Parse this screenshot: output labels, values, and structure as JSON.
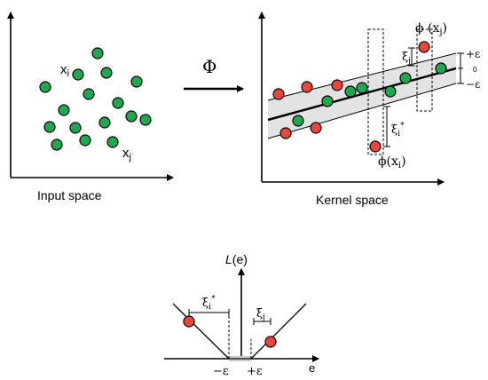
{
  "left_panel": {
    "title": "Input space",
    "label_xi": "x",
    "label_xi_sub": "i",
    "label_xj": "x",
    "label_xj_sub": "j"
  },
  "mapping": {
    "symbol": "Φ"
  },
  "right_panel": {
    "title": "Kernel space",
    "phi_xj": "ϕ (x",
    "phi_xj_sub": "j",
    "phi_xj_close": ")",
    "phi_xi": "ϕ(x",
    "phi_xi_sub": "i",
    "phi_xi_close": ")",
    "xi_j": "ξ",
    "xi_j_sub": "j",
    "xi_i_star": "ξ",
    "xi_i_star_sub": "i",
    "xi_i_star_sup": "*",
    "plus_eps": "+ε",
    "zero": "0",
    "minus_eps": "−ε"
  },
  "loss_panel": {
    "ylabel_L": "L",
    "ylabel_arg": "(e)",
    "xlabel": "e",
    "minus_eps": "−ε",
    "plus_eps": "+ε",
    "xi_i_star": "ξ",
    "xi_i_star_sub": "i",
    "xi_i_star_sup": "*",
    "xi_j": "ξ",
    "xi_j_sub": "j"
  },
  "colors": {
    "green_point": "#1fa84f",
    "red_point": "#e8473a",
    "tube_fill": "#e3e3e3",
    "zero_band": "#cfcfcf"
  }
}
